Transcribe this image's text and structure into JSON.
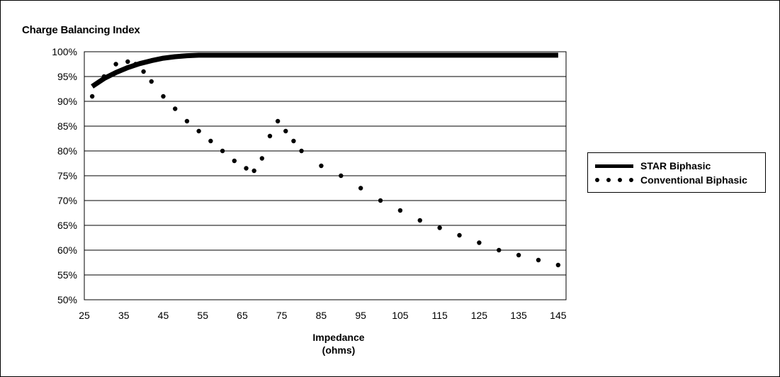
{
  "chart_data": {
    "type": "line",
    "title": "Charge Balancing  Index",
    "xlabel_line1": "Impedance",
    "xlabel_line2": "(ohms)",
    "ylabel": "",
    "xlim": [
      25,
      147
    ],
    "ylim": [
      50,
      100
    ],
    "x_ticks": [
      25,
      35,
      45,
      55,
      65,
      75,
      85,
      95,
      105,
      115,
      125,
      135,
      145
    ],
    "y_ticks": [
      50,
      55,
      60,
      65,
      70,
      75,
      80,
      85,
      90,
      95,
      100
    ],
    "y_tick_suffix": "%",
    "grid": "horizontal",
    "legend": "right",
    "series": [
      {
        "name": "STAR Biphasic",
        "style": "solid",
        "color": "#000000",
        "x": [
          27,
          30,
          33,
          36,
          39,
          42,
          45,
          48,
          51,
          54,
          60,
          80,
          100,
          145
        ],
        "y": [
          93,
          94.6,
          95.8,
          96.8,
          97.6,
          98.2,
          98.7,
          99.0,
          99.2,
          99.3,
          99.3,
          99.3,
          99.3,
          99.3
        ]
      },
      {
        "name": "Conventional Biphasic",
        "style": "dotted",
        "color": "#000000",
        "x": [
          27,
          30,
          33,
          36,
          38,
          40,
          42,
          45,
          48,
          51,
          54,
          57,
          60,
          63,
          66,
          68,
          70,
          72,
          74,
          76,
          78,
          80,
          85,
          90,
          95,
          100,
          105,
          110,
          115,
          120,
          125,
          130,
          135,
          140,
          145
        ],
        "y": [
          91,
          95,
          97.5,
          98,
          97.5,
          96,
          94,
          91,
          88.5,
          86,
          84,
          82,
          80,
          78,
          76.5,
          76,
          78.5,
          83,
          86,
          84,
          82,
          80,
          77,
          75,
          72.5,
          70,
          68,
          66,
          64.5,
          63,
          61.5,
          60,
          59,
          58,
          57
        ]
      }
    ]
  }
}
